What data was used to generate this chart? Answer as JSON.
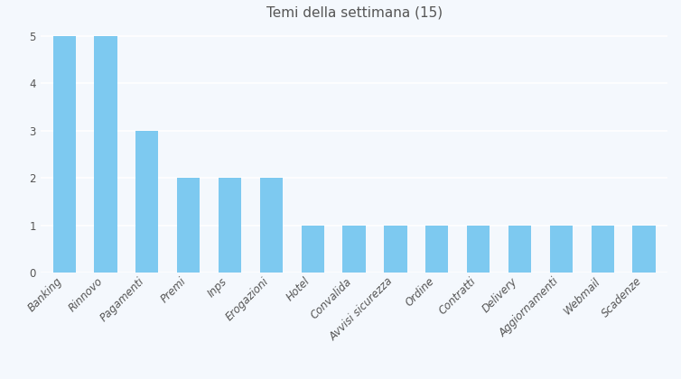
{
  "title": "Temi della settimana (15)",
  "categories": [
    "Banking",
    "Rinnovo",
    "Pagamenti",
    "Premi",
    "Inps",
    "Erogazioni",
    "Hotel",
    "Convalida",
    "Avvisi sicurezza",
    "Ordine",
    "Contratti",
    "Delivery",
    "Aggiornamenti",
    "Webmail",
    "Scadenze"
  ],
  "values": [
    5,
    5,
    3,
    2,
    2,
    2,
    1,
    1,
    1,
    1,
    1,
    1,
    1,
    1,
    1
  ],
  "bar_color": "#7DC9F0",
  "background_color": "#f4f8fd",
  "grid_color": "#ffffff",
  "text_color": "#555555",
  "ylim": [
    0,
    5.2
  ],
  "yticks": [
    0,
    1,
    2,
    3,
    4,
    5
  ],
  "title_fontsize": 11,
  "tick_fontsize": 8.5,
  "bar_width": 0.55
}
